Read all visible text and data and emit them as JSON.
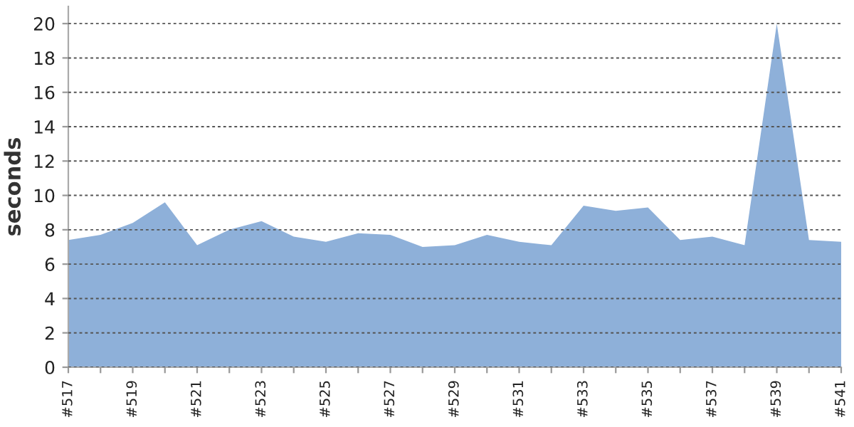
{
  "chart_data": {
    "type": "area",
    "ylabel": "seconds",
    "categories": [
      "#517",
      null,
      "#519",
      null,
      "#521",
      null,
      "#523",
      null,
      "#525",
      null,
      "#527",
      null,
      "#529",
      null,
      "#531",
      null,
      "#533",
      null,
      "#535",
      null,
      "#537",
      null,
      "#539",
      null,
      "#541"
    ],
    "series": [
      {
        "color": "#8eb0d9",
        "values": [
          7.4,
          7.7,
          8.4,
          9.6,
          7.1,
          8.0,
          8.5,
          7.6,
          7.3,
          7.8,
          7.7,
          7.0,
          7.1,
          7.7,
          7.3,
          7.1,
          9.4,
          9.1,
          9.3,
          7.4,
          7.6,
          7.1,
          20,
          7.4,
          7.3
        ]
      }
    ],
    "ylim": [
      0,
      21
    ],
    "yticks": [
      0,
      2,
      4,
      6,
      8,
      10,
      12,
      14,
      16,
      18,
      20
    ],
    "grid": "y",
    "legend": false
  }
}
